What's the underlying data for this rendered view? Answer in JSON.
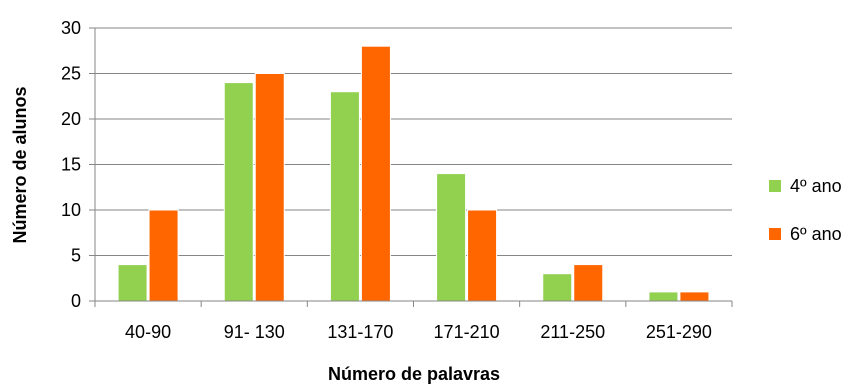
{
  "chart_data": {
    "type": "bar",
    "title": "",
    "xlabel": "Número de palavras",
    "ylabel": "Número de alunos",
    "categories": [
      "40-90",
      "91- 130",
      "131-170",
      "171-210",
      "211-250",
      "251-290"
    ],
    "series": [
      {
        "name": "4º ano",
        "color": "#92D050",
        "values": [
          4,
          24,
          23,
          14,
          3,
          1
        ]
      },
      {
        "name": "6º ano",
        "color": "#FF6600",
        "values": [
          10,
          25,
          28,
          10,
          4,
          1
        ]
      }
    ],
    "ylim": [
      0,
      30
    ],
    "yticks": [
      0,
      5,
      10,
      15,
      20,
      25,
      30
    ],
    "grid": true,
    "legend_position": "right"
  }
}
